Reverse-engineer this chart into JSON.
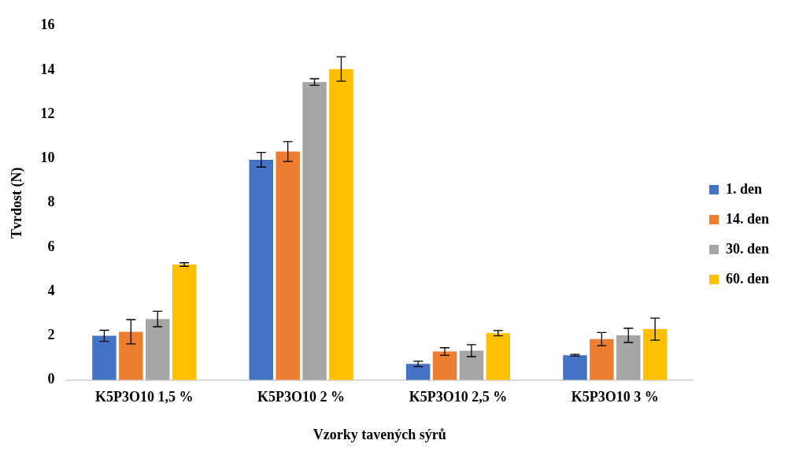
{
  "chart_data": {
    "type": "bar",
    "xlabel": "Vzorky tavených sýrů",
    "ylabel": "Tvrdost (N)",
    "categories": [
      "K5P3O10 1,5 %",
      "K5P3O10 2 %",
      "K5P3O10 2,5 %",
      "K5P3O10 3 %"
    ],
    "series": [
      {
        "name": "1. den",
        "color": "#4472c4",
        "values": [
          2.0,
          9.95,
          0.73,
          1.12
        ],
        "errors": [
          0.25,
          0.33,
          0.12,
          0.04
        ]
      },
      {
        "name": "14. den",
        "color": "#ed7d31",
        "values": [
          2.18,
          10.32,
          1.29,
          1.85
        ],
        "errors": [
          0.55,
          0.45,
          0.17,
          0.3
        ]
      },
      {
        "name": "30. den",
        "color": "#a5a5a5",
        "values": [
          2.76,
          13.46,
          1.33,
          2.02
        ],
        "errors": [
          0.35,
          0.15,
          0.27,
          0.32
        ]
      },
      {
        "name": "60. den",
        "color": "#ffc000",
        "values": [
          5.22,
          14.05,
          2.12,
          2.3
        ],
        "errors": [
          0.08,
          0.55,
          0.12,
          0.5
        ]
      }
    ],
    "ylim": [
      0,
      16
    ],
    "yticks": [
      0,
      2,
      4,
      6,
      8,
      10,
      12,
      14,
      16
    ],
    "grid": false,
    "legend": "right"
  }
}
